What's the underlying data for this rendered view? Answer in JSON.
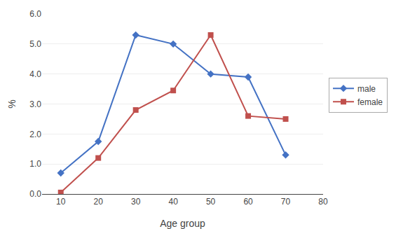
{
  "chart_data": {
    "type": "line",
    "x": [
      10,
      20,
      30,
      40,
      50,
      60,
      70
    ],
    "series": [
      {
        "name": "male",
        "color": "#4472C4",
        "marker": "diamond",
        "values": [
          0.7,
          1.75,
          5.3,
          5.0,
          4.0,
          3.9,
          1.3
        ]
      },
      {
        "name": "female",
        "color": "#C0504D",
        "marker": "square",
        "values": [
          0.05,
          1.2,
          2.8,
          3.45,
          5.3,
          2.6,
          2.5
        ]
      }
    ],
    "xlabel": "Age group",
    "ylabel": "%",
    "xlim": [
      5,
      80
    ],
    "ylim": [
      0.0,
      6.0
    ],
    "xticks": [
      10,
      20,
      30,
      40,
      50,
      60,
      70,
      80
    ],
    "yticks": [
      {
        "value": 0,
        "label": "0.0"
      },
      {
        "value": 1,
        "label": "1.0"
      },
      {
        "value": 2,
        "label": "2.0"
      },
      {
        "value": 3,
        "label": "3.0"
      },
      {
        "value": 4,
        "label": "4.0"
      },
      {
        "value": 5,
        "label": "5.0"
      },
      {
        "value": 6,
        "label": "6.0"
      }
    ],
    "grid": "y",
    "legend": "right"
  }
}
